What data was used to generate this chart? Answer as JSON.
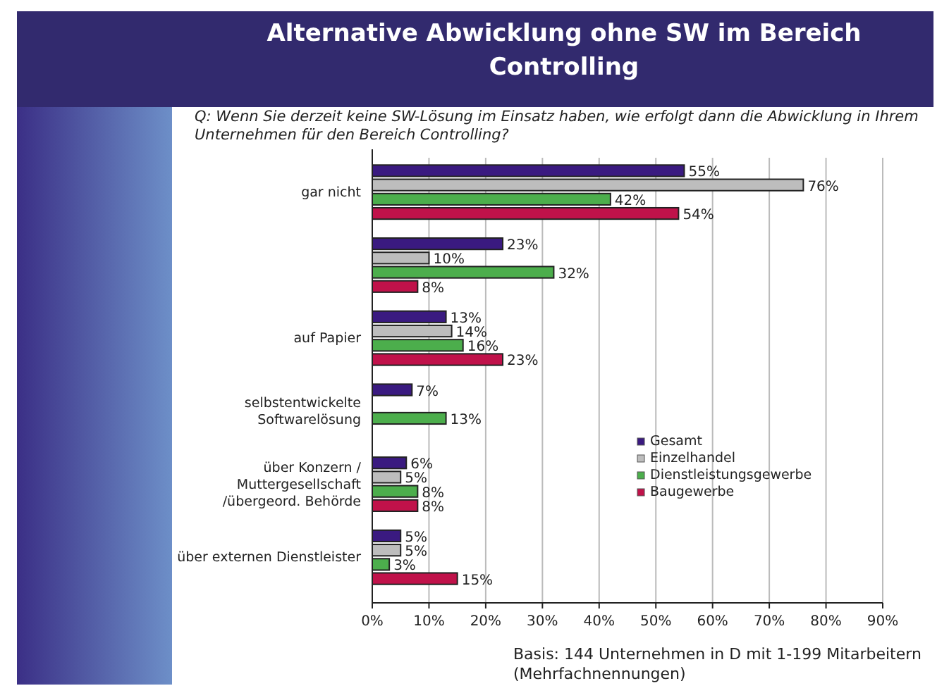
{
  "chart_data": {
    "type": "bar",
    "orientation": "horizontal",
    "title": "Alternative Abwicklung ohne SW im Bereich Controlling",
    "subtitle": "Q: Wenn Sie derzeit keine SW-Lösung im Einsatz haben, wie erfolgt dann die Abwicklung in Ihrem Unternehmen für den Bereich Controlling?",
    "categories": [
      "gar nicht",
      null,
      "auf Papier",
      "selbstentwickelte\nSoftwarelösung",
      "über Konzern /\nMuttergesellschaft\n/übergeord. Behörde",
      "über externen Dienstleister"
    ],
    "series": [
      {
        "name": "Gesamt",
        "color": "#3a1a80",
        "values": [
          55,
          23,
          13,
          7,
          6,
          5
        ],
        "value_labels": [
          "55%",
          "23%",
          "13%",
          "7%",
          "6%",
          "5%"
        ]
      },
      {
        "name": "Einzelhandel",
        "color": "#bdbdbd",
        "values": [
          76,
          10,
          14,
          null,
          5,
          5
        ],
        "value_labels": [
          "76%",
          "10%",
          "14%",
          null,
          "5%",
          "5%"
        ]
      },
      {
        "name": "Dienstleistungsgewerbe",
        "color": "#4cae4c",
        "values": [
          42,
          32,
          16,
          13,
          8,
          3
        ],
        "value_labels": [
          "42%",
          "32%",
          "16%",
          "13%",
          "8%",
          "3%"
        ]
      },
      {
        "name": "Baugewerbe",
        "color": "#c0124a",
        "values": [
          54,
          8,
          23,
          null,
          8,
          15
        ],
        "value_labels": [
          "54%",
          "8%",
          "23%",
          null,
          "8%",
          "15%"
        ]
      }
    ],
    "xlim": [
      0,
      90
    ],
    "xticks": [
      {
        "value": 0,
        "label": "0%"
      },
      {
        "value": 10,
        "label": "10%"
      },
      {
        "value": 20,
        "label": "20%"
      },
      {
        "value": 30,
        "label": "30%"
      },
      {
        "value": 40,
        "label": "40%"
      },
      {
        "value": 50,
        "label": "50%"
      },
      {
        "value": 60,
        "label": "60%"
      },
      {
        "value": 70,
        "label": "70%"
      },
      {
        "value": 80,
        "label": "80%"
      },
      {
        "value": 90,
        "label": "90%"
      }
    ],
    "grid": "x",
    "legend": "right",
    "annotations": [
      "Basis: 144 Unternehmen in D mit 1-199 Mitarbeitern\n(Mehrfachnennungen)"
    ]
  }
}
